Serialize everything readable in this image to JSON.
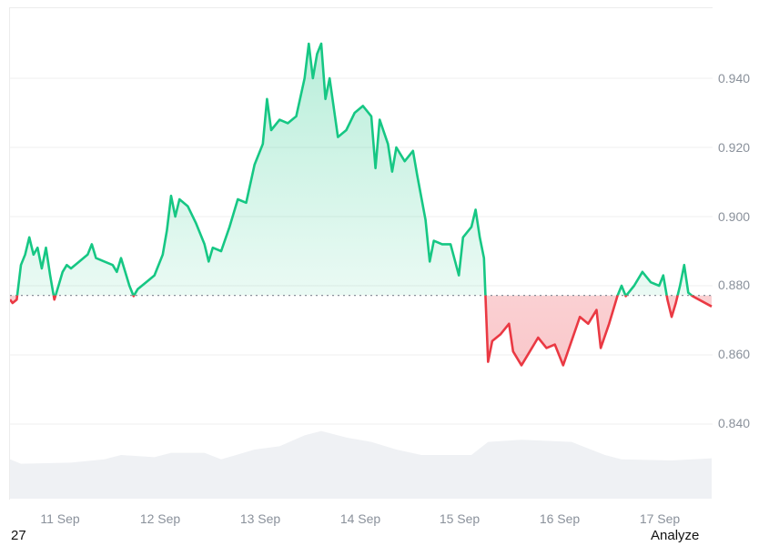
{
  "chart_data": {
    "type": "line",
    "title": "",
    "xlabel": "",
    "ylabel": "",
    "ylim": [
      0.8335,
      0.954
    ],
    "baseline": 0.8772,
    "grid": "horizontal",
    "x_ticks": [
      "11 Sep",
      "12 Sep",
      "13 Sep",
      "14 Sep",
      "15 Sep",
      "16 Sep",
      "17 Sep"
    ],
    "y_ticks": [
      "0.940",
      "0.920",
      "0.900",
      "0.880",
      "0.860",
      "0.840"
    ],
    "colors": {
      "up": "#16c784",
      "down": "#ea3943",
      "grid": "#efefef",
      "baseline": "#8a919b",
      "volume": "#eff1f4"
    },
    "series": [
      {
        "name": "price",
        "points": [
          [
            "10 Sep 21:00",
            0.876
          ],
          [
            "10 Sep 22:00",
            0.875
          ],
          [
            "10 Sep 23:00",
            0.876
          ],
          [
            "11 Sep 00:00",
            0.886
          ],
          [
            "11 Sep 01:00",
            0.889
          ],
          [
            "11 Sep 02:00",
            0.894
          ],
          [
            "11 Sep 03:00",
            0.889
          ],
          [
            "11 Sep 04:00",
            0.891
          ],
          [
            "11 Sep 05:00",
            0.885
          ],
          [
            "11 Sep 06:00",
            0.891
          ],
          [
            "11 Sep 07:00",
            0.883
          ],
          [
            "11 Sep 08:00",
            0.876
          ],
          [
            "11 Sep 09:00",
            0.88
          ],
          [
            "11 Sep 10:00",
            0.884
          ],
          [
            "11 Sep 11:00",
            0.886
          ],
          [
            "11 Sep 12:00",
            0.885
          ],
          [
            "11 Sep 14:00",
            0.887
          ],
          [
            "11 Sep 16:00",
            0.889
          ],
          [
            "11 Sep 17:00",
            0.892
          ],
          [
            "11 Sep 18:00",
            0.888
          ],
          [
            "11 Sep 20:00",
            0.887
          ],
          [
            "11 Sep 22:00",
            0.886
          ],
          [
            "11 Sep 23:00",
            0.884
          ],
          [
            "12 Sep 00:00",
            0.888
          ],
          [
            "12 Sep 01:00",
            0.884
          ],
          [
            "12 Sep 02:00",
            0.88
          ],
          [
            "12 Sep 03:00",
            0.877
          ],
          [
            "12 Sep 04:00",
            0.879
          ],
          [
            "12 Sep 06:00",
            0.881
          ],
          [
            "12 Sep 08:00",
            0.883
          ],
          [
            "12 Sep 10:00",
            0.889
          ],
          [
            "12 Sep 11:00",
            0.896
          ],
          [
            "12 Sep 12:00",
            0.906
          ],
          [
            "12 Sep 13:00",
            0.9
          ],
          [
            "12 Sep 14:00",
            0.905
          ],
          [
            "12 Sep 16:00",
            0.903
          ],
          [
            "12 Sep 18:00",
            0.898
          ],
          [
            "12 Sep 20:00",
            0.892
          ],
          [
            "12 Sep 21:00",
            0.887
          ],
          [
            "12 Sep 22:00",
            0.891
          ],
          [
            "13 Sep 00:00",
            0.89
          ],
          [
            "13 Sep 02:00",
            0.897
          ],
          [
            "13 Sep 04:00",
            0.905
          ],
          [
            "13 Sep 06:00",
            0.904
          ],
          [
            "13 Sep 08:00",
            0.915
          ],
          [
            "13 Sep 10:00",
            0.921
          ],
          [
            "13 Sep 11:00",
            0.934
          ],
          [
            "13 Sep 12:00",
            0.925
          ],
          [
            "13 Sep 14:00",
            0.928
          ],
          [
            "13 Sep 16:00",
            0.927
          ],
          [
            "13 Sep 18:00",
            0.929
          ],
          [
            "13 Sep 20:00",
            0.94
          ],
          [
            "13 Sep 21:00",
            0.95
          ],
          [
            "13 Sep 22:00",
            0.94
          ],
          [
            "13 Sep 23:00",
            0.947
          ],
          [
            "14 Sep 00:00",
            0.95
          ],
          [
            "14 Sep 01:00",
            0.934
          ],
          [
            "14 Sep 02:00",
            0.94
          ],
          [
            "14 Sep 04:00",
            0.923
          ],
          [
            "14 Sep 06:00",
            0.925
          ],
          [
            "14 Sep 08:00",
            0.93
          ],
          [
            "14 Sep 10:00",
            0.932
          ],
          [
            "14 Sep 12:00",
            0.929
          ],
          [
            "14 Sep 13:00",
            0.914
          ],
          [
            "14 Sep 14:00",
            0.928
          ],
          [
            "14 Sep 16:00",
            0.921
          ],
          [
            "14 Sep 17:00",
            0.913
          ],
          [
            "14 Sep 18:00",
            0.92
          ],
          [
            "14 Sep 20:00",
            0.916
          ],
          [
            "14 Sep 22:00",
            0.919
          ],
          [
            "14 Sep 23:00",
            0.912
          ],
          [
            "15 Sep 01:00",
            0.899
          ],
          [
            "15 Sep 02:00",
            0.887
          ],
          [
            "15 Sep 03:00",
            0.893
          ],
          [
            "15 Sep 05:00",
            0.892
          ],
          [
            "15 Sep 07:00",
            0.892
          ],
          [
            "15 Sep 09:00",
            0.883
          ],
          [
            "15 Sep 10:00",
            0.894
          ],
          [
            "15 Sep 12:00",
            0.897
          ],
          [
            "15 Sep 13:00",
            0.902
          ],
          [
            "15 Sep 14:00",
            0.894
          ],
          [
            "15 Sep 15:00",
            0.888
          ],
          [
            "15 Sep 16:00",
            0.858
          ],
          [
            "15 Sep 17:00",
            0.864
          ],
          [
            "15 Sep 19:00",
            0.866
          ],
          [
            "15 Sep 21:00",
            0.869
          ],
          [
            "15 Sep 22:00",
            0.861
          ],
          [
            "16 Sep 00:00",
            0.857
          ],
          [
            "16 Sep 02:00",
            0.861
          ],
          [
            "16 Sep 04:00",
            0.865
          ],
          [
            "16 Sep 06:00",
            0.862
          ],
          [
            "16 Sep 08:00",
            0.863
          ],
          [
            "16 Sep 10:00",
            0.857
          ],
          [
            "16 Sep 12:00",
            0.864
          ],
          [
            "16 Sep 14:00",
            0.871
          ],
          [
            "16 Sep 16:00",
            0.869
          ],
          [
            "16 Sep 18:00",
            0.873
          ],
          [
            "16 Sep 19:00",
            0.862
          ],
          [
            "16 Sep 21:00",
            0.869
          ],
          [
            "16 Sep 23:00",
            0.877
          ],
          [
            "17 Sep 00:00",
            0.88
          ],
          [
            "17 Sep 01:00",
            0.877
          ],
          [
            "17 Sep 03:00",
            0.88
          ],
          [
            "17 Sep 05:00",
            0.884
          ],
          [
            "17 Sep 07:00",
            0.881
          ],
          [
            "17 Sep 09:00",
            0.88
          ],
          [
            "17 Sep 10:00",
            0.883
          ],
          [
            "17 Sep 11:00",
            0.876
          ],
          [
            "17 Sep 12:00",
            0.871
          ],
          [
            "17 Sep 13:00",
            0.875
          ],
          [
            "17 Sep 14:00",
            0.88
          ],
          [
            "17 Sep 15:00",
            0.886
          ],
          [
            "17 Sep 16:00",
            0.878
          ],
          [
            "17 Sep 17:00",
            0.877
          ],
          [
            "17 Sep 18:00",
            0.874
          ]
        ]
      },
      {
        "name": "volume (relative, 0-1)",
        "points": [
          [
            "10 Sep 21:00",
            0.36
          ],
          [
            "11 Sep 00:00",
            0.32
          ],
          [
            "11 Sep 12:00",
            0.33
          ],
          [
            "11 Sep 20:00",
            0.36
          ],
          [
            "12 Sep 00:00",
            0.4
          ],
          [
            "12 Sep 08:00",
            0.38
          ],
          [
            "12 Sep 12:00",
            0.42
          ],
          [
            "12 Sep 20:00",
            0.42
          ],
          [
            "13 Sep 00:00",
            0.36
          ],
          [
            "13 Sep 08:00",
            0.45
          ],
          [
            "13 Sep 14:00",
            0.48
          ],
          [
            "13 Sep 20:00",
            0.58
          ],
          [
            "14 Sep 00:00",
            0.62
          ],
          [
            "14 Sep 06:00",
            0.56
          ],
          [
            "14 Sep 12:00",
            0.52
          ],
          [
            "14 Sep 18:00",
            0.45
          ],
          [
            "15 Sep 00:00",
            0.4
          ],
          [
            "15 Sep 12:00",
            0.4
          ],
          [
            "15 Sep 16:00",
            0.52
          ],
          [
            "16 Sep 00:00",
            0.54
          ],
          [
            "16 Sep 12:00",
            0.52
          ],
          [
            "16 Sep 20:00",
            0.4
          ],
          [
            "17 Sep 00:00",
            0.36
          ],
          [
            "17 Sep 12:00",
            0.35
          ],
          [
            "17 Sep 18:00",
            0.37
          ]
        ]
      }
    ]
  },
  "axis": {
    "y_labels": [
      "0.940",
      "0.920",
      "0.900",
      "0.880",
      "0.860",
      "0.840"
    ],
    "x_labels": [
      "11 Sep",
      "12 Sep",
      "13 Sep",
      "14 Sep",
      "15 Sep",
      "16 Sep",
      "17 Sep"
    ]
  },
  "footer": {
    "left_text": "27",
    "right_text": "Analyze"
  }
}
